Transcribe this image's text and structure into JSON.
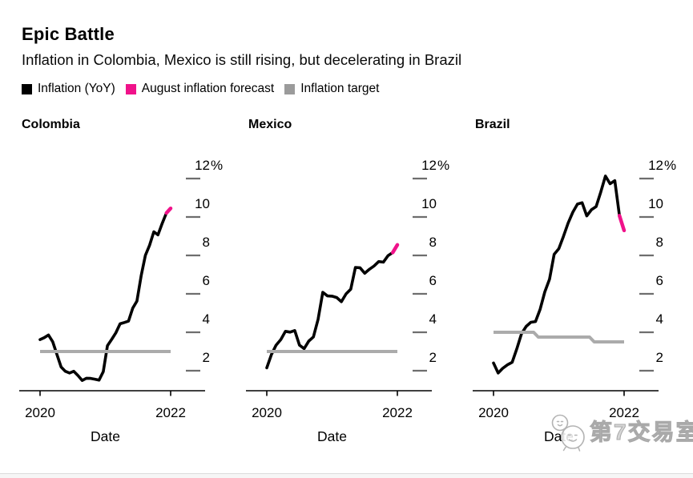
{
  "header": {
    "title": "Epic Battle",
    "subtitle": "Inflation in Colombia, Mexico is still rising, but decelerating in Brazil"
  },
  "legend": [
    {
      "label": "Inflation (YoY)",
      "color": "#000000"
    },
    {
      "label": "August inflation forecast",
      "color": "#f0128a"
    },
    {
      "label": "Inflation target",
      "color": "#9b9b9b"
    }
  ],
  "colors": {
    "inflation_line": "#000000",
    "forecast_line": "#f0128a",
    "target_line": "#ababab",
    "axis": "#000000",
    "tick_dash": "#6e6e6e",
    "text": "#000000"
  },
  "watermark": {
    "icon": "wechat-chat-bubbles-icon",
    "text": "第7交易室"
  },
  "chart_data": [
    {
      "type": "line",
      "title": "Colombia",
      "x_start": "2020-01",
      "x_freq": "monthly",
      "xlabel": "Date",
      "x_tick_labels": [
        "2020",
        "2022"
      ],
      "y_ticks": [
        12,
        10,
        8,
        6,
        4,
        2
      ],
      "y_unit": "%",
      "ylim": [
        1,
        12.5
      ],
      "series": {
        "inflation_yoy": {
          "name": "Inflation (YoY)",
          "values": [
            3.62,
            3.72,
            3.86,
            3.51,
            2.85,
            2.19,
            1.97,
            1.88,
            1.97,
            1.75,
            1.49,
            1.61,
            1.6,
            1.56,
            1.51,
            1.95,
            3.3,
            3.63,
            3.97,
            4.44,
            4.51,
            4.58,
            5.26,
            5.62,
            6.94,
            8.01,
            8.53,
            9.23,
            9.07,
            9.67,
            10.21
          ]
        },
        "august_forecast": {
          "name": "August inflation forecast",
          "month": "2022-08",
          "value": 10.45
        },
        "inflation_target": {
          "name": "Inflation target",
          "points": [
            [
              0,
              3.0
            ],
            [
              31,
              3.0
            ]
          ]
        }
      }
    },
    {
      "type": "line",
      "title": "Mexico",
      "x_start": "2020-04",
      "x_freq": "monthly",
      "xlabel": "Date",
      "x_tick_labels": [
        "2020",
        "2022"
      ],
      "y_ticks": [
        12,
        10,
        8,
        6,
        4,
        2
      ],
      "y_unit": "%",
      "ylim": [
        1,
        12.5
      ],
      "series": {
        "inflation_yoy": {
          "name": "Inflation (YoY)",
          "values": [
            2.15,
            2.84,
            3.33,
            3.62,
            4.05,
            4.01,
            4.09,
            3.33,
            3.15,
            3.54,
            3.76,
            4.67,
            6.08,
            5.89,
            5.88,
            5.81,
            5.59,
            6.0,
            6.24,
            7.37,
            7.36,
            7.07,
            7.28,
            7.45,
            7.68,
            7.65,
            7.99,
            8.15
          ]
        },
        "august_forecast": {
          "name": "August inflation forecast",
          "month": "2022-08",
          "value": 8.55
        },
        "inflation_target": {
          "name": "Inflation target",
          "points": [
            [
              0,
              3.0
            ],
            [
              28,
              3.0
            ]
          ]
        }
      }
    },
    {
      "type": "line",
      "title": "Brazil",
      "x_start": "2020-04",
      "x_freq": "monthly",
      "xlabel": "Date",
      "x_tick_labels": [
        "2020",
        "2022"
      ],
      "y_ticks": [
        12,
        10,
        8,
        6,
        4,
        2
      ],
      "y_unit": "%",
      "ylim": [
        1,
        12.5
      ],
      "series": {
        "inflation_yoy": {
          "name": "Inflation (YoY)",
          "values": [
            2.4,
            1.88,
            2.13,
            2.31,
            2.44,
            3.14,
            3.92,
            4.31,
            4.52,
            4.56,
            5.2,
            6.1,
            6.76,
            8.06,
            8.35,
            8.99,
            9.68,
            10.25,
            10.67,
            10.74,
            10.06,
            10.38,
            10.54,
            11.3,
            12.13,
            11.73,
            11.89,
            10.07
          ]
        },
        "august_forecast": {
          "name": "August inflation forecast",
          "month": "2022-08",
          "value": 9.3
        },
        "inflation_target": {
          "name": "Inflation target",
          "points": [
            [
              0,
              4.0
            ],
            [
              8.6,
              4.0
            ],
            [
              9.6,
              3.75
            ],
            [
              20.6,
              3.75
            ],
            [
              21.6,
              3.5
            ],
            [
              28,
              3.5
            ]
          ]
        }
      }
    }
  ]
}
